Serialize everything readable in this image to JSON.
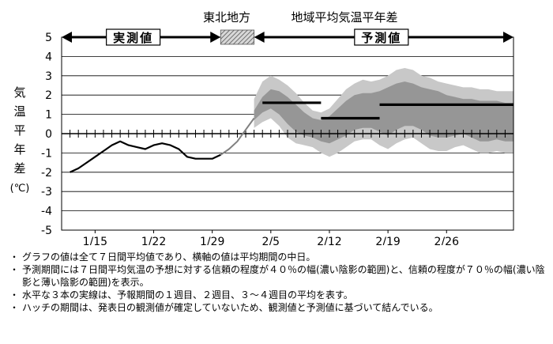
{
  "chart_data": {
    "type": "line",
    "title_region": "東北地方",
    "title": "地域平均気温平年差",
    "ylabel": "気温平年差(℃)",
    "ylabel_chars": [
      "気",
      "温",
      "平",
      "年",
      "差",
      "(℃)"
    ],
    "ylim": [
      -5,
      5
    ],
    "yticks": [
      5,
      4,
      3,
      2,
      1,
      0,
      -1,
      -2,
      -3,
      -4,
      -5
    ],
    "xlim": [
      "2024-01-11",
      "2024-03-05"
    ],
    "xtick_labels": [
      "1/15",
      "1/22",
      "1/29",
      "2/5",
      "2/12",
      "2/19",
      "2/26"
    ],
    "xtick_dates": [
      "2024-01-15",
      "2024-01-22",
      "2024-01-29",
      "2024-02-05",
      "2024-02-12",
      "2024-02-19",
      "2024-02-26"
    ],
    "observed_label": "実測値",
    "forecast_label": "予測値",
    "observed_range": [
      "2024-01-11",
      "2024-01-30"
    ],
    "hatch_range": [
      "2024-01-30",
      "2024-02-03"
    ],
    "forecast_range": [
      "2024-02-03",
      "2024-03-05"
    ],
    "observed": {
      "x": [
        "2024-01-12",
        "2024-01-13",
        "2024-01-14",
        "2024-01-15",
        "2024-01-16",
        "2024-01-17",
        "2024-01-18",
        "2024-01-19",
        "2024-01-20",
        "2024-01-21",
        "2024-01-22",
        "2024-01-23",
        "2024-01-24",
        "2024-01-25",
        "2024-01-26",
        "2024-01-27",
        "2024-01-28",
        "2024-01-29",
        "2024-01-30"
      ],
      "y": [
        -2.0,
        -1.8,
        -1.5,
        -1.2,
        -0.9,
        -0.6,
        -0.4,
        -0.6,
        -0.7,
        -0.8,
        -0.6,
        -0.5,
        -0.6,
        -0.8,
        -1.2,
        -1.3,
        -1.3,
        -1.3,
        -1.1
      ]
    },
    "hatch_line": {
      "x": [
        "2024-01-30",
        "2024-01-31",
        "2024-02-01",
        "2024-02-02",
        "2024-02-03"
      ],
      "y": [
        -1.1,
        -0.8,
        -0.4,
        0.2,
        0.8
      ]
    },
    "forecast_dates": [
      "2024-02-03",
      "2024-02-04",
      "2024-02-05",
      "2024-02-06",
      "2024-02-07",
      "2024-02-08",
      "2024-02-09",
      "2024-02-10",
      "2024-02-11",
      "2024-02-12",
      "2024-02-13",
      "2024-02-14",
      "2024-02-15",
      "2024-02-16",
      "2024-02-17",
      "2024-02-18",
      "2024-02-19",
      "2024-02-20",
      "2024-02-21",
      "2024-02-22",
      "2024-02-23",
      "2024-02-24",
      "2024-02-25",
      "2024-02-26",
      "2024-02-27",
      "2024-02-28",
      "2024-02-29",
      "2024-03-01",
      "2024-03-02",
      "2024-03-03",
      "2024-03-04",
      "2024-03-05"
    ],
    "band_70": {
      "upper": [
        1.8,
        2.7,
        3.0,
        2.8,
        2.5,
        2.1,
        1.6,
        1.2,
        1.1,
        1.3,
        1.8,
        2.3,
        2.6,
        2.8,
        2.7,
        2.8,
        3.0,
        3.3,
        3.4,
        3.3,
        3.0,
        2.9,
        2.7,
        2.6,
        2.5,
        2.4,
        2.4,
        2.3,
        2.3,
        2.2,
        2.2,
        2.2
      ],
      "lower": [
        0.3,
        0.6,
        0.8,
        0.4,
        -0.2,
        -0.5,
        -0.6,
        -0.7,
        -1.0,
        -1.2,
        -1.0,
        -0.7,
        -0.4,
        -0.3,
        -0.3,
        -0.6,
        -0.8,
        -0.5,
        -0.3,
        -0.2,
        -0.5,
        -0.8,
        -0.9,
        -0.9,
        -0.7,
        -0.6,
        -0.8,
        -1.0,
        -1.0,
        -0.9,
        -1.0,
        -1.0
      ]
    },
    "band_40": {
      "upper": [
        1.2,
        1.9,
        2.3,
        2.2,
        1.9,
        1.5,
        1.1,
        0.8,
        0.7,
        0.9,
        1.3,
        1.7,
        2.0,
        2.1,
        2.1,
        2.2,
        2.4,
        2.6,
        2.7,
        2.6,
        2.4,
        2.3,
        2.2,
        2.0,
        1.9,
        1.8,
        1.8,
        1.7,
        1.7,
        1.7,
        1.6,
        1.6
      ],
      "lower": [
        0.7,
        1.1,
        1.3,
        1.0,
        0.5,
        0.1,
        -0.1,
        -0.2,
        -0.4,
        -0.5,
        -0.3,
        -0.1,
        0.2,
        0.3,
        0.3,
        0.1,
        -0.1,
        0.2,
        0.4,
        0.4,
        0.2,
        -0.1,
        -0.2,
        -0.2,
        -0.1,
        0.0,
        -0.2,
        -0.4,
        -0.4,
        -0.3,
        -0.4,
        -0.4
      ]
    },
    "period_means": [
      {
        "from": "2024-02-04",
        "to": "2024-02-11",
        "value": 1.6
      },
      {
        "from": "2024-02-11",
        "to": "2024-02-18",
        "value": 0.8
      },
      {
        "from": "2024-02-18",
        "to": "2024-03-05",
        "value": 1.5
      }
    ],
    "colors": {
      "band_70": "#c8c8c8",
      "band_40": "#969696",
      "line": "#000000",
      "hatch": "#808080"
    }
  },
  "notes": [
    "グラフの値は全て７日間平均値であり、横軸の値は平均期間の中日。",
    "予測期間には７日間平均気温の予想に対する信頼の程度が４０％の幅(濃い陰影の範囲)と、信頼の程度が７０％の幅(濃い陰影と薄い陰影の範囲)を表示。",
    "水平な３本の実線は、予報期間の１週目、２週目、３～４週目の平均を表す。",
    "ハッチの期間は、発表日の観測値が確定していないため、観測値と予測値に基づいて結んでいる。"
  ],
  "note_bullet": "・"
}
